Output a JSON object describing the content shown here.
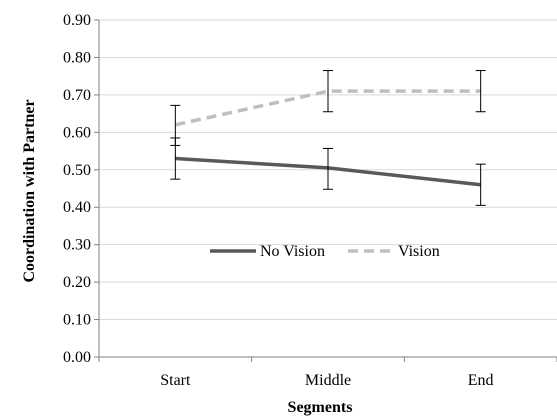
{
  "chart_data": {
    "type": "line",
    "title": "",
    "xlabel": "Segments",
    "ylabel": "Coordination with Partner",
    "categories": [
      "Start",
      "Middle",
      "End"
    ],
    "ylim": [
      0,
      0.9
    ],
    "yticks": [
      "0.00",
      "0.10",
      "0.20",
      "0.30",
      "0.40",
      "0.50",
      "0.60",
      "0.70",
      "0.80",
      "0.90"
    ],
    "grid": true,
    "legend_position": "center",
    "series": [
      {
        "name": "No Vision",
        "values": [
          0.53,
          0.505,
          0.46
        ],
        "error_low": [
          0.475,
          0.448,
          0.405
        ],
        "error_high": [
          0.585,
          0.557,
          0.515
        ],
        "color": "#595959",
        "dash": "solid"
      },
      {
        "name": "Vision",
        "values": [
          0.62,
          0.71,
          0.71
        ],
        "error_low": [
          0.565,
          0.655,
          0.655
        ],
        "error_high": [
          0.672,
          0.765,
          0.765
        ],
        "color": "#bfbfbf",
        "dash": "dashed"
      }
    ]
  }
}
